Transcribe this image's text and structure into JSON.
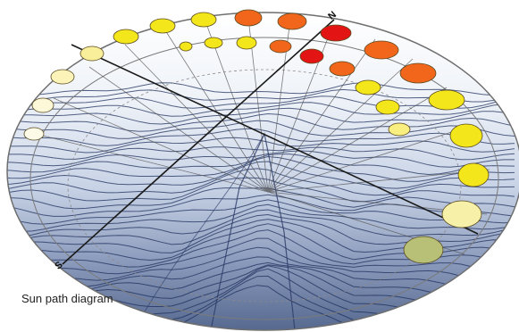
{
  "caption": "Sun path diagram",
  "markers": {
    "north": "N",
    "south": "S"
  },
  "colors": {
    "sky_top": "#ffffff",
    "sky_mid": "#dfe7f3",
    "sky_bottom": "#5a6f98",
    "contour": "#1e2f5c",
    "ring": "#7a7a7a",
    "sun_red": "#e31414",
    "sun_orange": "#f2661c",
    "sun_yellow": "#f3e61a",
    "sun_pale": "#f7f0a8",
    "sun_olive": "#b8c078"
  }
}
